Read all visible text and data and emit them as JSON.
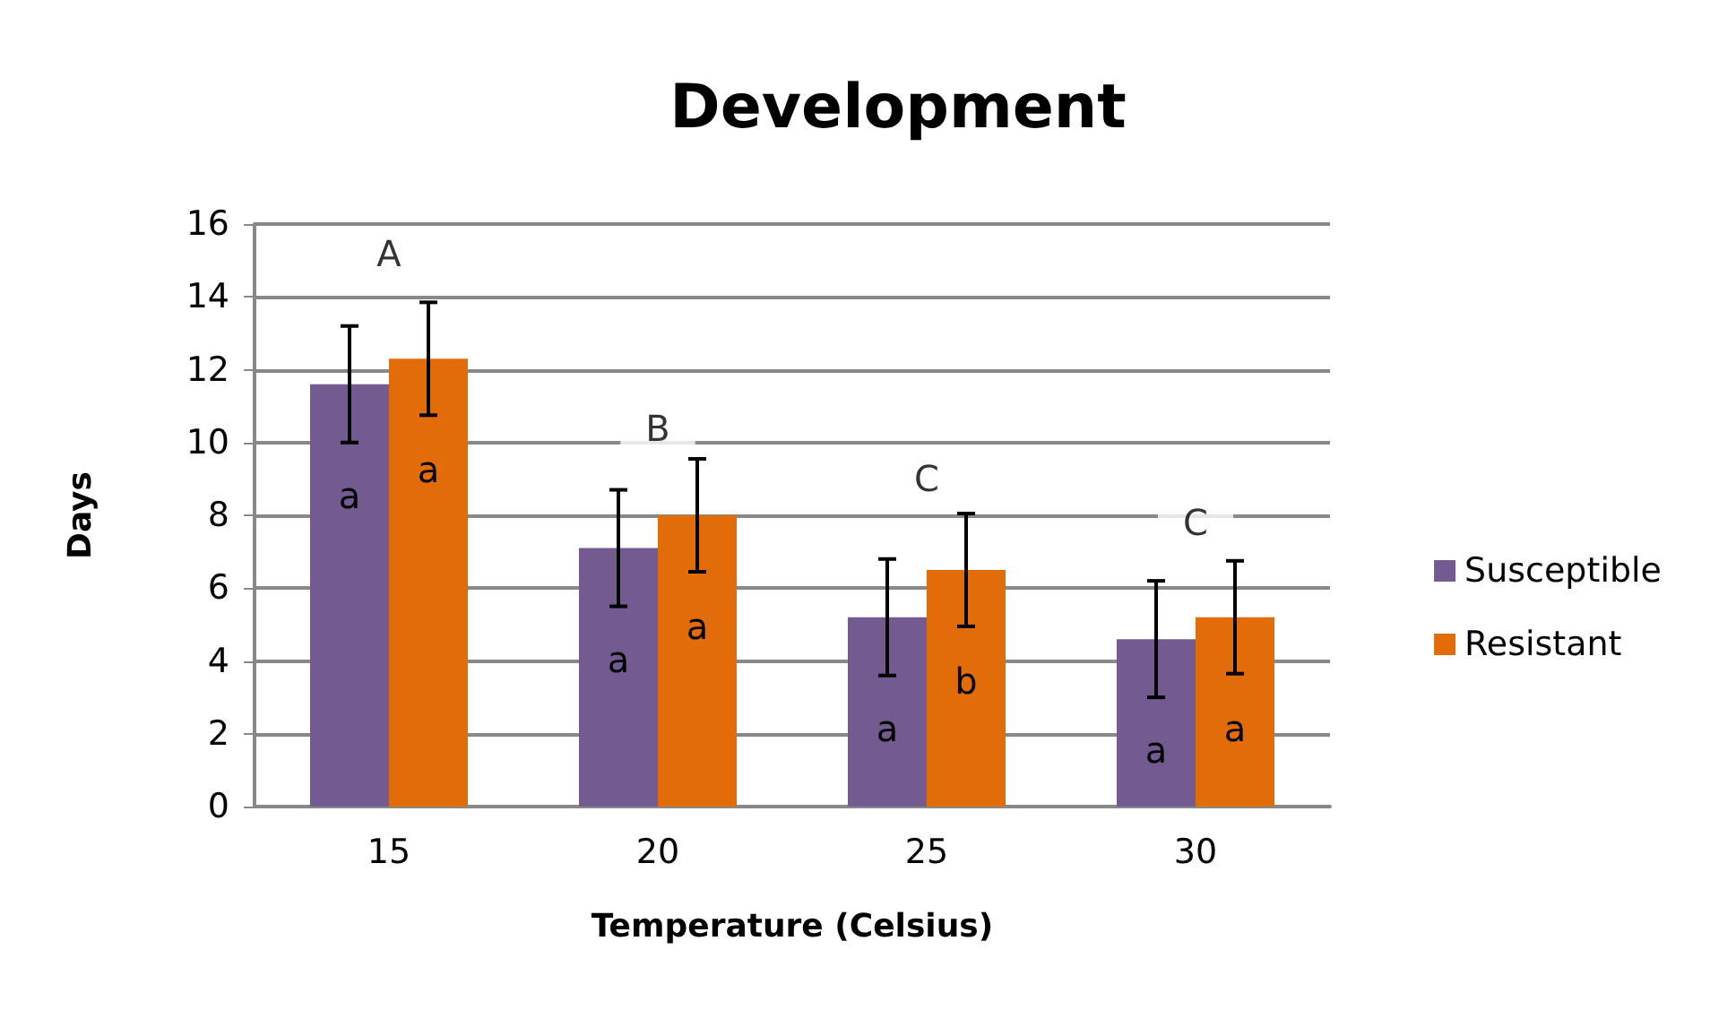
{
  "chart_data": {
    "type": "bar",
    "title": "Development",
    "xlabel": "Temperature (Celsius)",
    "ylabel": "Days",
    "categories": [
      "15",
      "20",
      "25",
      "30"
    ],
    "series": [
      {
        "name": "Susceptible",
        "color": "#735b91",
        "values": [
          11.6,
          7.1,
          5.2,
          4.6
        ],
        "errors": [
          1.6,
          1.6,
          1.6,
          1.6
        ],
        "value_labels": [
          "a",
          "a",
          "a",
          "a"
        ]
      },
      {
        "name": "Resistant",
        "color": "#e36c0a",
        "values": [
          12.3,
          8.0,
          6.5,
          5.2
        ],
        "errors": [
          1.55,
          1.55,
          1.55,
          1.55
        ],
        "value_labels": [
          "a",
          "a",
          "b",
          "a"
        ]
      }
    ],
    "annotations": [
      {
        "text": "A",
        "x": "15",
        "y": 15.2
      },
      {
        "text": "B",
        "x": "20",
        "y": 10.4
      },
      {
        "text": "C",
        "x": "25",
        "y": 9.0
      },
      {
        "text": "C",
        "x": "30",
        "y": 7.8
      }
    ],
    "ylim": [
      0,
      16
    ],
    "yticks": [
      0,
      2,
      4,
      6,
      8,
      10,
      12,
      14,
      16
    ],
    "grid": "y",
    "legend": "right"
  }
}
